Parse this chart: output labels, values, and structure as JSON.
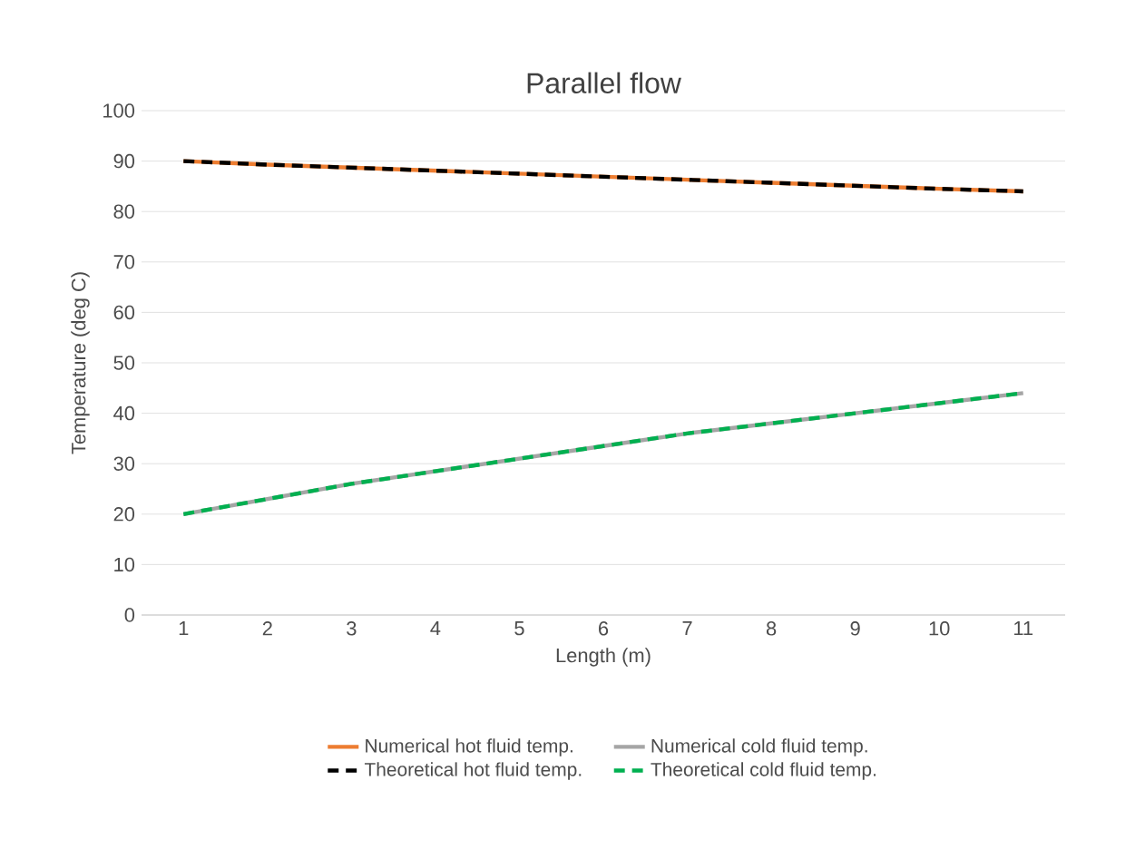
{
  "chart_data": {
    "type": "line",
    "title": "Parallel flow",
    "xlabel": "Length (m)",
    "ylabel": "Temperature (deg C)",
    "categories": [
      "1",
      "2",
      "3",
      "4",
      "5",
      "6",
      "7",
      "8",
      "9",
      "10",
      "11"
    ],
    "ylim": [
      0,
      100
    ],
    "yticks": [
      0,
      10,
      20,
      30,
      40,
      50,
      60,
      70,
      80,
      90,
      100
    ],
    "grid": "y",
    "legend": "bottom",
    "marker": "none",
    "series": [
      {
        "name": "Numerical hot fluid temp.",
        "color": "#ed7d31",
        "line_style": "solid",
        "values": [
          90,
          89.3,
          88.7,
          88.1,
          87.5,
          86.9,
          86.3,
          85.7,
          85.1,
          84.5,
          84
        ]
      },
      {
        "name": "Numerical cold fluid temp.",
        "color": "#a5a5a5",
        "line_style": "solid",
        "values": [
          20,
          23,
          26,
          28.5,
          31,
          33.5,
          36,
          38,
          40,
          42,
          44
        ]
      },
      {
        "name": "Theoretical hot fluid temp.",
        "color": "#000000",
        "line_style": "dashed",
        "values": [
          90,
          89.3,
          88.7,
          88.1,
          87.5,
          86.9,
          86.3,
          85.7,
          85.1,
          84.5,
          84
        ]
      },
      {
        "name": "Theoretical cold fluid temp.",
        "color": "#00b050",
        "line_style": "dashed",
        "values": [
          20,
          23,
          26,
          28.5,
          31,
          33.5,
          36,
          38,
          40,
          42,
          44
        ]
      }
    ]
  }
}
